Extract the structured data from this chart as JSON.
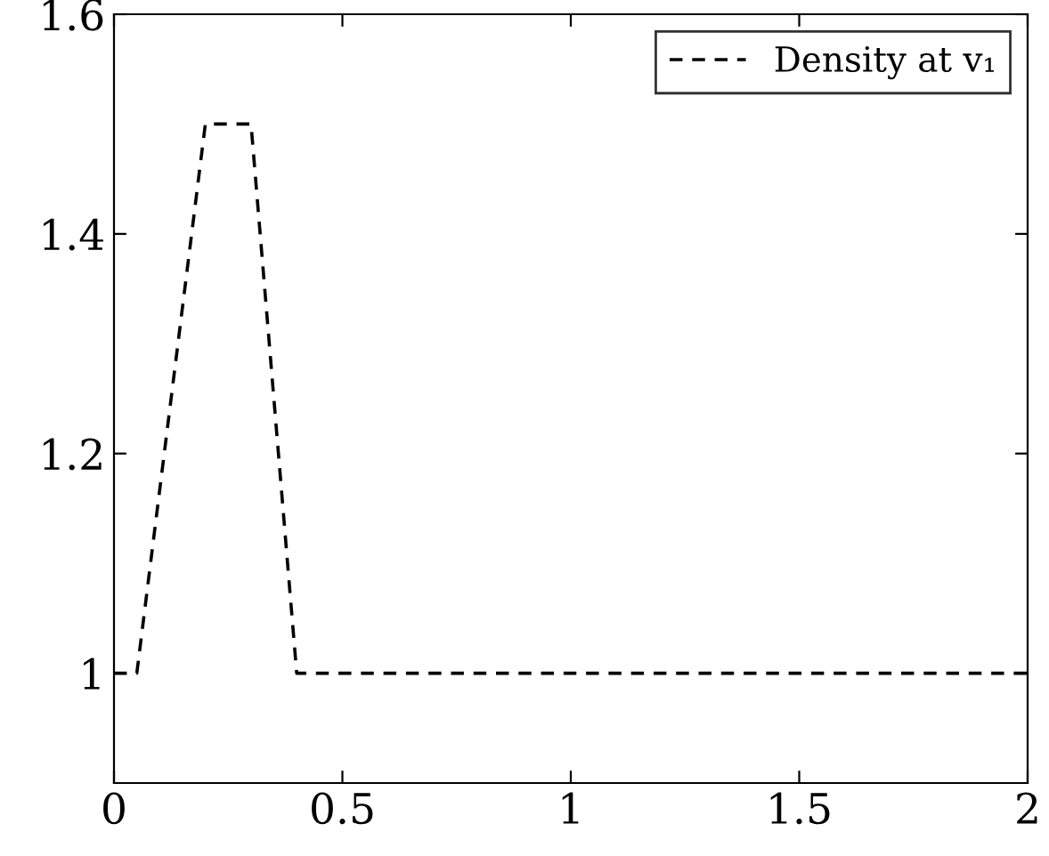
{
  "chart_data": {
    "type": "line",
    "x": [
      0,
      0.05,
      0.2,
      0.3,
      0.4,
      2
    ],
    "series": [
      {
        "name": "Density at v₁",
        "color": "#000000",
        "values": [
          1,
          1,
          1.5,
          1.5,
          1,
          1
        ]
      }
    ],
    "xlim": [
      0,
      2
    ],
    "ylim": [
      0.9,
      1.6
    ],
    "xticks": [
      0,
      0.5,
      1,
      1.5,
      2
    ],
    "yticks": [
      1,
      1.2,
      1.4,
      1.6
    ],
    "line_style": "dashed",
    "marker": "none",
    "grid": false,
    "legend": "top right"
  }
}
